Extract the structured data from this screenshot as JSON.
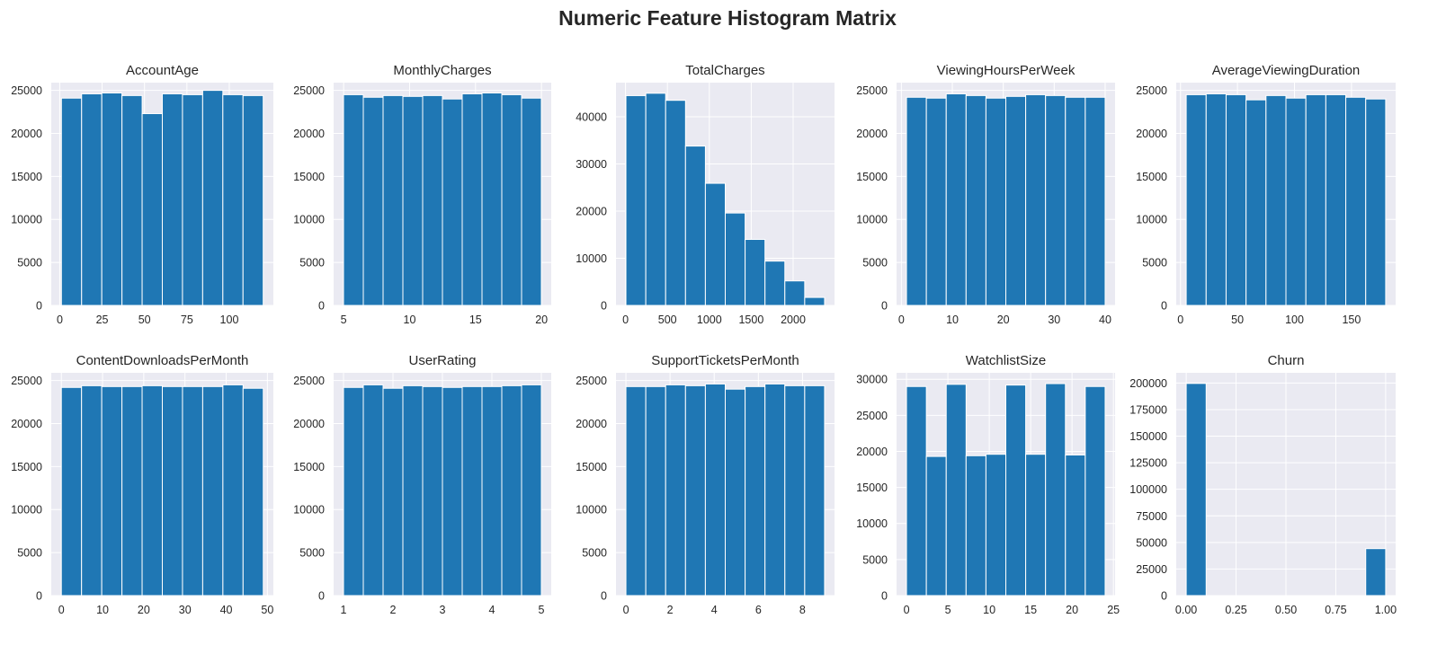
{
  "figure": {
    "title": "Numeric Feature Histogram Matrix"
  },
  "colors": {
    "bar": "#1f77b4",
    "panel_background": "#eaeaf2",
    "grid": "#ffffff",
    "text": "#262626"
  },
  "chart_data": [
    {
      "type": "bar",
      "title": "AccountAge",
      "bins": [
        [
          1,
          12.9
        ],
        [
          12.9,
          24.8
        ],
        [
          24.8,
          36.7
        ],
        [
          36.7,
          48.6
        ],
        [
          48.6,
          60.5
        ],
        [
          60.5,
          72.4
        ],
        [
          72.4,
          84.3
        ],
        [
          84.3,
          96.2
        ],
        [
          96.2,
          108.1
        ],
        [
          108.1,
          120
        ]
      ],
      "values": [
        24100,
        24600,
        24700,
        24400,
        22300,
        24600,
        24500,
        25000,
        24500,
        24400
      ],
      "xlim": [
        -5.0,
        126.0
      ],
      "ylim": [
        0,
        25900
      ],
      "xticks": [
        0,
        25,
        50,
        75,
        100
      ],
      "xtick_labels": [
        "0",
        "25",
        "50",
        "75",
        "100"
      ],
      "yticks": [
        0,
        5000,
        10000,
        15000,
        20000,
        25000
      ],
      "ytick_labels": [
        "0",
        "5000",
        "10000",
        "15000",
        "20000",
        "25000"
      ],
      "grid": true
    },
    {
      "type": "bar",
      "title": "MonthlyCharges",
      "bins": [
        [
          4.99,
          6.49
        ],
        [
          6.49,
          7.99
        ],
        [
          7.99,
          9.49
        ],
        [
          9.49,
          10.99
        ],
        [
          10.99,
          12.49
        ],
        [
          12.49,
          13.99
        ],
        [
          13.99,
          15.49
        ],
        [
          15.49,
          16.99
        ],
        [
          16.99,
          18.49
        ],
        [
          18.49,
          19.99
        ]
      ],
      "values": [
        24500,
        24200,
        24400,
        24300,
        24400,
        24000,
        24600,
        24700,
        24500,
        24100
      ],
      "xlim": [
        4.24,
        20.74
      ],
      "ylim": [
        0,
        25900
      ],
      "xticks": [
        5,
        10,
        15,
        20
      ],
      "xtick_labels": [
        "5",
        "10",
        "15",
        "20"
      ],
      "yticks": [
        0,
        5000,
        10000,
        15000,
        20000,
        25000
      ],
      "ytick_labels": [
        "0",
        "5000",
        "10000",
        "15000",
        "20000",
        "25000"
      ],
      "grid": true
    },
    {
      "type": "bar",
      "title": "TotalCharges",
      "bins": [
        [
          5,
          242
        ],
        [
          242,
          479
        ],
        [
          479,
          716
        ],
        [
          716,
          953
        ],
        [
          953,
          1190
        ],
        [
          1190,
          1427
        ],
        [
          1427,
          1664
        ],
        [
          1664,
          1901
        ],
        [
          1901,
          2138
        ],
        [
          2138,
          2375
        ]
      ],
      "values": [
        44500,
        45000,
        43500,
        33800,
        25900,
        19600,
        14000,
        9400,
        5200,
        1700
      ],
      "xlim": [
        -113.5,
        2493.5
      ],
      "ylim": [
        0,
        47250
      ],
      "xticks": [
        0,
        500,
        1000,
        1500,
        2000
      ],
      "xtick_labels": [
        "0",
        "500",
        "1000",
        "1500",
        "2000"
      ],
      "yticks": [
        0,
        10000,
        20000,
        30000,
        40000
      ],
      "ytick_labels": [
        "0",
        "10000",
        "20000",
        "30000",
        "40000"
      ],
      "grid": true
    },
    {
      "type": "bar",
      "title": "ViewingHoursPerWeek",
      "bins": [
        [
          1,
          4.9
        ],
        [
          4.9,
          8.8
        ],
        [
          8.8,
          12.7
        ],
        [
          12.7,
          16.6
        ],
        [
          16.6,
          20.5
        ],
        [
          20.5,
          24.4
        ],
        [
          24.4,
          28.3
        ],
        [
          28.3,
          32.2
        ],
        [
          32.2,
          36.1
        ],
        [
          36.1,
          40
        ]
      ],
      "values": [
        24200,
        24100,
        24600,
        24400,
        24100,
        24300,
        24500,
        24400,
        24200,
        24200
      ],
      "xlim": [
        -0.95,
        41.95
      ],
      "ylim": [
        0,
        25900
      ],
      "xticks": [
        0,
        10,
        20,
        30,
        40
      ],
      "xtick_labels": [
        "0",
        "10",
        "20",
        "30",
        "40"
      ],
      "yticks": [
        0,
        5000,
        10000,
        15000,
        20000,
        25000
      ],
      "ytick_labels": [
        "0",
        "5000",
        "10000",
        "15000",
        "20000",
        "25000"
      ],
      "grid": true
    },
    {
      "type": "bar",
      "title": "AverageViewingDuration",
      "bins": [
        [
          5,
          22.5
        ],
        [
          22.5,
          40
        ],
        [
          40,
          57.5
        ],
        [
          57.5,
          75
        ],
        [
          75,
          92.5
        ],
        [
          92.5,
          110
        ],
        [
          110,
          127.5
        ],
        [
          127.5,
          145
        ],
        [
          145,
          162.5
        ],
        [
          162.5,
          180
        ]
      ],
      "values": [
        24500,
        24600,
        24500,
        23900,
        24400,
        24100,
        24500,
        24500,
        24200,
        24000
      ],
      "xlim": [
        -3.75,
        188.75
      ],
      "ylim": [
        0,
        25900
      ],
      "xticks": [
        0,
        50,
        100,
        150
      ],
      "xtick_labels": [
        "0",
        "50",
        "100",
        "150"
      ],
      "yticks": [
        0,
        5000,
        10000,
        15000,
        20000,
        25000
      ],
      "ytick_labels": [
        "0",
        "5000",
        "10000",
        "15000",
        "20000",
        "25000"
      ],
      "grid": true
    },
    {
      "type": "bar",
      "title": "ContentDownloadsPerMonth",
      "bins": [
        [
          0,
          4.9
        ],
        [
          4.9,
          9.8
        ],
        [
          9.8,
          14.7
        ],
        [
          14.7,
          19.6
        ],
        [
          19.6,
          24.5
        ],
        [
          24.5,
          29.4
        ],
        [
          29.4,
          34.3
        ],
        [
          34.3,
          39.2
        ],
        [
          39.2,
          44.1
        ],
        [
          44.1,
          49
        ]
      ],
      "values": [
        24200,
        24400,
        24300,
        24300,
        24400,
        24300,
        24300,
        24300,
        24500,
        24100
      ],
      "xlim": [
        -2.45,
        51.45
      ],
      "ylim": [
        0,
        25900
      ],
      "xticks": [
        0,
        10,
        20,
        30,
        40,
        50
      ],
      "xtick_labels": [
        "0",
        "10",
        "20",
        "30",
        "40",
        "50"
      ],
      "yticks": [
        0,
        5000,
        10000,
        15000,
        20000,
        25000
      ],
      "ytick_labels": [
        "0",
        "5000",
        "10000",
        "15000",
        "20000",
        "25000"
      ],
      "grid": true
    },
    {
      "type": "bar",
      "title": "UserRating",
      "bins": [
        [
          1,
          1.4
        ],
        [
          1.4,
          1.8
        ],
        [
          1.8,
          2.2
        ],
        [
          2.2,
          2.6
        ],
        [
          2.6,
          3.0
        ],
        [
          3.0,
          3.4
        ],
        [
          3.4,
          3.8
        ],
        [
          3.8,
          4.2
        ],
        [
          4.2,
          4.6
        ],
        [
          4.6,
          5
        ]
      ],
      "values": [
        24200,
        24500,
        24100,
        24400,
        24300,
        24200,
        24300,
        24300,
        24400,
        24500
      ],
      "xlim": [
        0.8,
        5.2
      ],
      "ylim": [
        0,
        25900
      ],
      "xticks": [
        1,
        2,
        3,
        4,
        5
      ],
      "xtick_labels": [
        "1",
        "2",
        "3",
        "4",
        "5"
      ],
      "yticks": [
        0,
        5000,
        10000,
        15000,
        20000,
        25000
      ],
      "ytick_labels": [
        "0",
        "5000",
        "10000",
        "15000",
        "20000",
        "25000"
      ],
      "grid": true
    },
    {
      "type": "bar",
      "title": "SupportTicketsPerMonth",
      "bins": [
        [
          0,
          0.9
        ],
        [
          0.9,
          1.8
        ],
        [
          1.8,
          2.7
        ],
        [
          2.7,
          3.6
        ],
        [
          3.6,
          4.5
        ],
        [
          4.5,
          5.4
        ],
        [
          5.4,
          6.3
        ],
        [
          6.3,
          7.2
        ],
        [
          7.2,
          8.1
        ],
        [
          8.1,
          9
        ]
      ],
      "values": [
        24300,
        24300,
        24500,
        24400,
        24600,
        24000,
        24300,
        24600,
        24400,
        24400
      ],
      "xlim": [
        -0.45,
        9.45
      ],
      "ylim": [
        0,
        25900
      ],
      "xticks": [
        0,
        2,
        4,
        6,
        8
      ],
      "xtick_labels": [
        "0",
        "2",
        "4",
        "6",
        "8"
      ],
      "yticks": [
        0,
        5000,
        10000,
        15000,
        20000,
        25000
      ],
      "ytick_labels": [
        "0",
        "5000",
        "10000",
        "15000",
        "20000",
        "25000"
      ],
      "grid": true
    },
    {
      "type": "bar",
      "title": "WatchlistSize",
      "bins": [
        [
          0,
          2.4
        ],
        [
          2.4,
          4.8
        ],
        [
          4.8,
          7.2
        ],
        [
          7.2,
          9.6
        ],
        [
          9.6,
          12.0
        ],
        [
          12.0,
          14.4
        ],
        [
          14.4,
          16.8
        ],
        [
          16.8,
          19.2
        ],
        [
          19.2,
          21.6
        ],
        [
          21.6,
          24
        ]
      ],
      "values": [
        29000,
        19300,
        29300,
        19400,
        19600,
        29200,
        19600,
        29400,
        19500,
        29000
      ],
      "xlim": [
        -1.2,
        25.2
      ],
      "ylim": [
        0,
        30900
      ],
      "xticks": [
        0,
        5,
        10,
        15,
        20,
        25
      ],
      "xtick_labels": [
        "0",
        "5",
        "10",
        "15",
        "20",
        "25"
      ],
      "yticks": [
        0,
        5000,
        10000,
        15000,
        20000,
        25000,
        30000
      ],
      "ytick_labels": [
        "0",
        "5000",
        "10000",
        "15000",
        "20000",
        "25000",
        "30000"
      ],
      "grid": true
    },
    {
      "type": "bar",
      "title": "Churn",
      "bins": [
        [
          0,
          0.1
        ],
        [
          0.1,
          0.2
        ],
        [
          0.2,
          0.3
        ],
        [
          0.3,
          0.4
        ],
        [
          0.4,
          0.5
        ],
        [
          0.5,
          0.6
        ],
        [
          0.6,
          0.7
        ],
        [
          0.7,
          0.8
        ],
        [
          0.8,
          0.9
        ],
        [
          0.9,
          1.0
        ]
      ],
      "values": [
        199600,
        0,
        0,
        0,
        0,
        0,
        0,
        0,
        0,
        44200
      ],
      "xlim": [
        -0.05,
        1.05
      ],
      "ylim": [
        0,
        209600
      ],
      "xticks": [
        0,
        0.25,
        0.5,
        0.75,
        1.0
      ],
      "xtick_labels": [
        "0.00",
        "0.25",
        "0.50",
        "0.75",
        "1.00"
      ],
      "yticks": [
        0,
        25000,
        50000,
        75000,
        100000,
        125000,
        150000,
        175000,
        200000
      ],
      "ytick_labels": [
        "0",
        "25000",
        "50000",
        "75000",
        "100000",
        "125000",
        "150000",
        "175000",
        "200000"
      ],
      "grid": true
    }
  ]
}
